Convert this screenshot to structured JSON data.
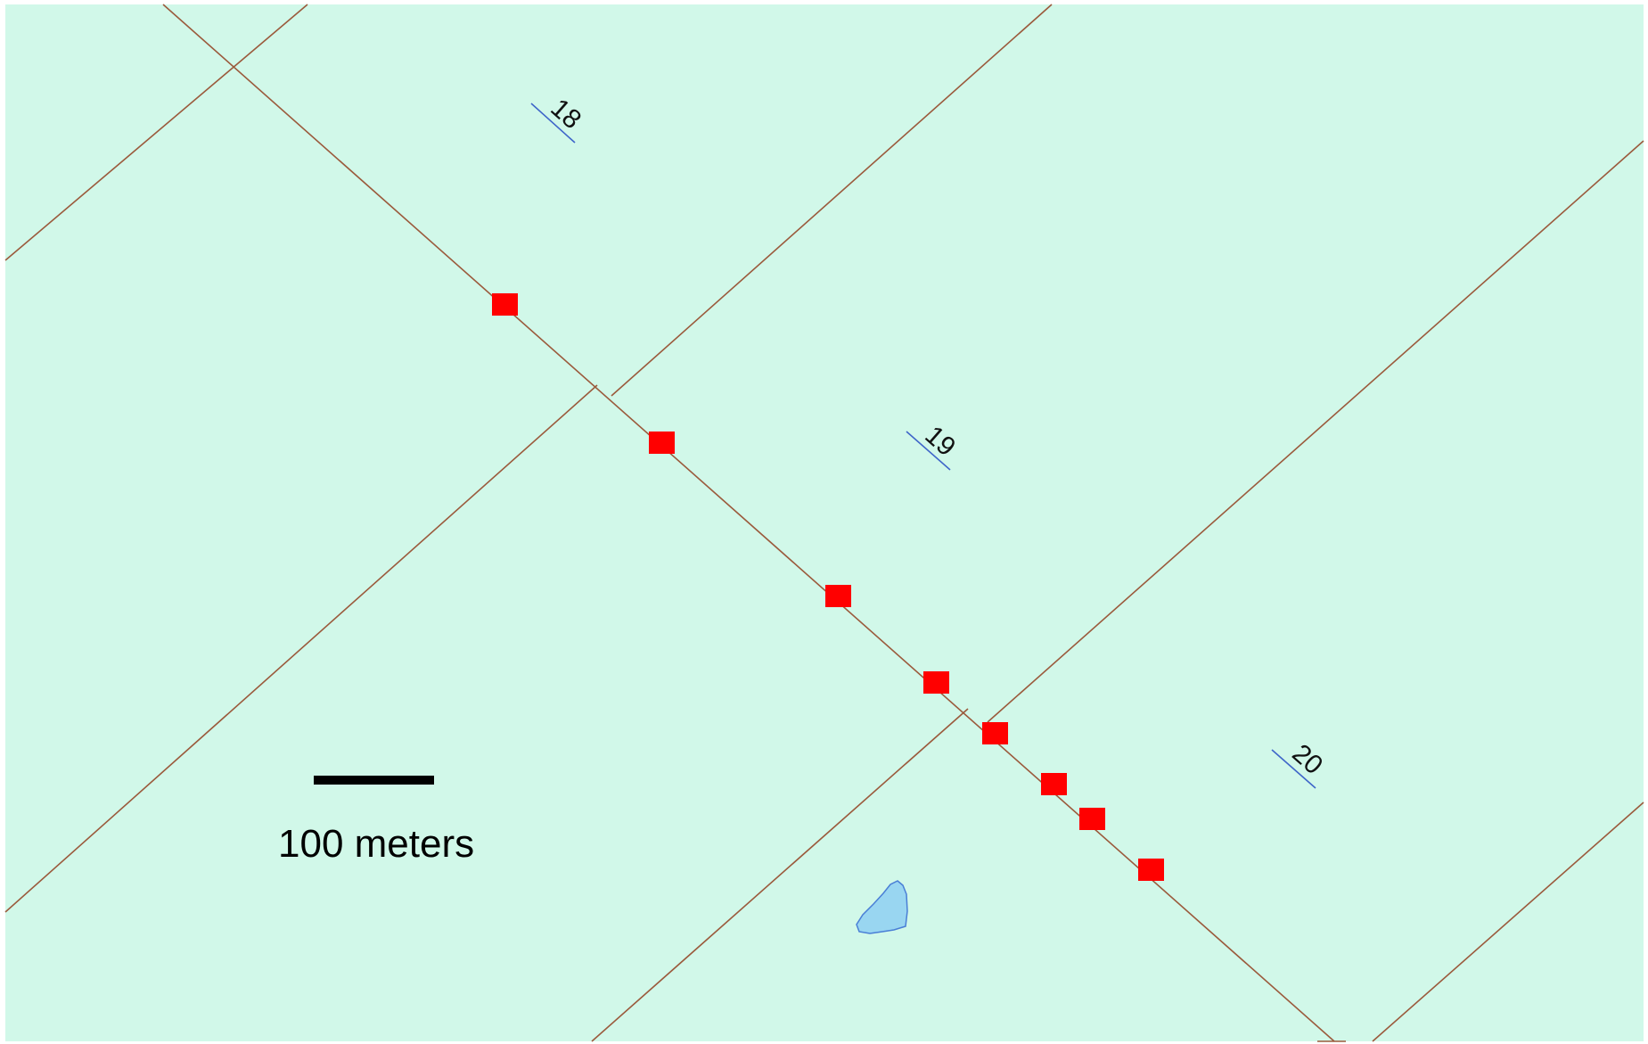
{
  "map": {
    "background_color": "#d1f8e9",
    "parcel_line_color": "#9b5a3c",
    "label_line_color": "#3f66c9",
    "marker_color": "#ff0000",
    "pond_fill_color": "#99d6f1",
    "pond_stroke_color": "#4a7fd6"
  },
  "section_labels": [
    {
      "id": "18",
      "text": "18"
    },
    {
      "id": "19",
      "text": "19"
    },
    {
      "id": "20",
      "text": "20"
    }
  ],
  "markers": {
    "count": 8,
    "shape": "square",
    "icon": "square-marker-icon"
  },
  "pond": {
    "icon": "water-body-icon"
  },
  "scale_bar": {
    "label": "100 meters",
    "distance": 100,
    "unit": "meters"
  }
}
